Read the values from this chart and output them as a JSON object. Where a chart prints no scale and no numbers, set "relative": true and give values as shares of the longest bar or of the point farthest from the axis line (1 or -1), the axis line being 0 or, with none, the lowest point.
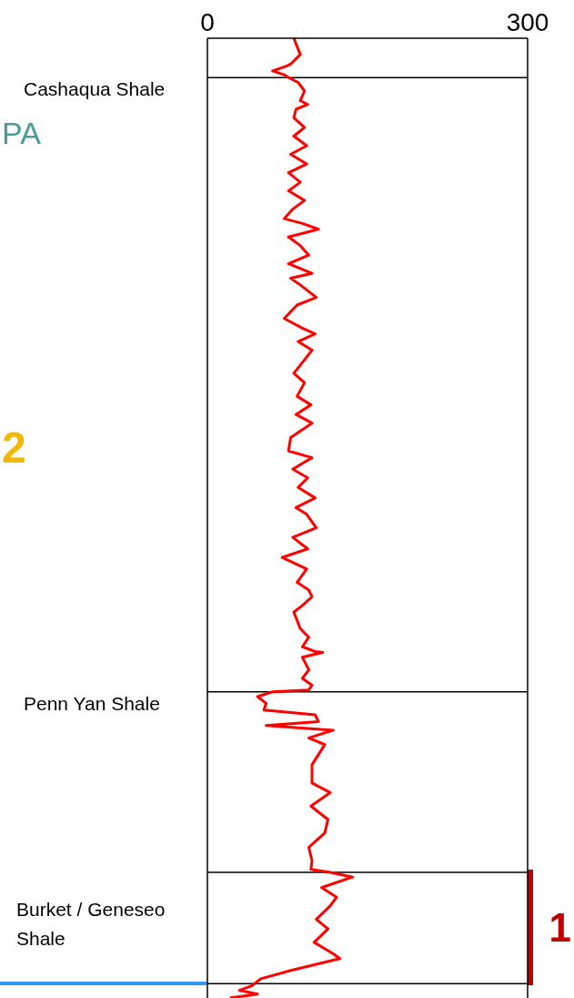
{
  "chart_data": {
    "type": "line",
    "relative": true,
    "xlim": [
      0,
      300
    ],
    "xticks": [
      0,
      300
    ],
    "series": [
      {
        "color": "#ff0000",
        "x": [
          81,
          87,
          78,
          74,
          61,
          72,
          76,
          85,
          91,
          87,
          94,
          83,
          81,
          91,
          81,
          93,
          78,
          93,
          76,
          87,
          76,
          91,
          80,
          72,
          89,
          104,
          76,
          87,
          95,
          76,
          98,
          78,
          87,
          102,
          84,
          72,
          89,
          101,
          85,
          98,
          91,
          81,
          91,
          84,
          97,
          83,
          98,
          78,
          76,
          98,
          80,
          94,
          85,
          101,
          83,
          93,
          102,
          80,
          94,
          70,
          93,
          84,
          95,
          98,
          89,
          81,
          87,
          95,
          89,
          101,
          108,
          89,
          95,
          89,
          98,
          95,
          61,
          47,
          55,
          53,
          101,
          104,
          55,
          118,
          95,
          110,
          106,
          98,
          98,
          115,
          97,
          113,
          110,
          95,
          98,
          97,
          115,
          136,
          107,
          121,
          115,
          102,
          113,
          100,
          118,
          124,
          79,
          50,
          42,
          30,
          47,
          21
        ],
        "values": [
          1.0,
          0.983,
          0.973,
          0.971,
          0.966,
          0.962,
          0.959,
          0.954,
          0.945,
          0.935,
          0.931,
          0.926,
          0.917,
          0.907,
          0.898,
          0.888,
          0.879,
          0.869,
          0.86,
          0.85,
          0.841,
          0.831,
          0.822,
          0.812,
          0.807,
          0.801,
          0.793,
          0.784,
          0.774,
          0.765,
          0.755,
          0.75,
          0.743,
          0.73,
          0.722,
          0.708,
          0.698,
          0.692,
          0.684,
          0.675,
          0.665,
          0.651,
          0.641,
          0.627,
          0.618,
          0.608,
          0.599,
          0.584,
          0.57,
          0.563,
          0.551,
          0.542,
          0.532,
          0.521,
          0.511,
          0.504,
          0.49,
          0.48,
          0.468,
          0.459,
          0.447,
          0.433,
          0.425,
          0.418,
          0.409,
          0.402,
          0.385,
          0.376,
          0.366,
          0.361,
          0.36,
          0.355,
          0.342,
          0.333,
          0.326,
          0.321,
          0.319,
          0.314,
          0.307,
          0.3,
          0.295,
          0.288,
          0.284,
          0.279,
          0.271,
          0.264,
          0.257,
          0.243,
          0.224,
          0.214,
          0.2,
          0.186,
          0.172,
          0.157,
          0.143,
          0.134,
          0.131,
          0.126,
          0.115,
          0.105,
          0.096,
          0.082,
          0.072,
          0.058,
          0.046,
          0.041,
          0.029,
          0.02,
          0.013,
          0.008,
          0.004,
          0.0
        ]
      }
    ],
    "ref_lines": [
      {
        "axis": "y",
        "value": 0.959,
        "label": "Cashaqua Shale"
      },
      {
        "axis": "y",
        "value": 0.319,
        "label": "Penn Yan Shale"
      },
      {
        "axis": "y",
        "value": 0.131,
        "label": "Burket / Geneseo Shale"
      },
      {
        "axis": "y",
        "value": 0.015
      }
    ],
    "annotations": [
      "PA",
      "2",
      "1"
    ]
  }
}
